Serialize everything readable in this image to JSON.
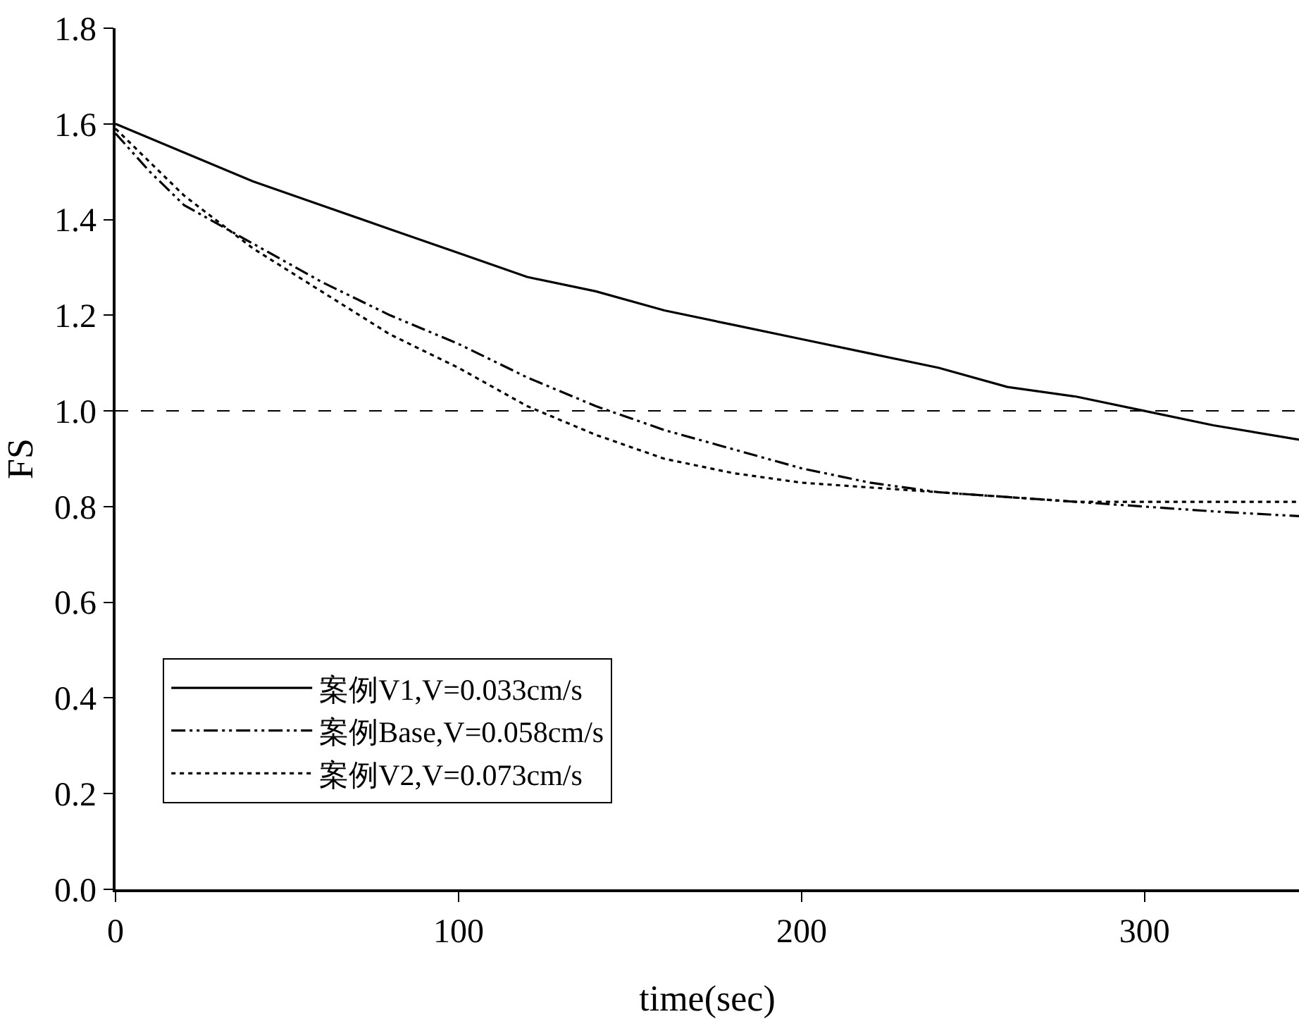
{
  "chart_data": {
    "type": "line",
    "xlabel": "time(sec)",
    "ylabel": "FS",
    "xlim": [
      0,
      345
    ],
    "xticks": [
      0,
      100,
      200,
      300
    ],
    "ylim": [
      0,
      1.8
    ],
    "yticks": [
      {
        "value": 0,
        "label": "0.0"
      },
      0.2,
      0.4,
      0.6,
      0.8,
      {
        "value": 1,
        "label": "1.0"
      },
      1.2,
      1.4,
      1.6,
      1.8
    ],
    "legend": "bottom left",
    "marker": "none",
    "ref_lines": [
      {
        "axis": "y",
        "value": 1.0,
        "color": "#000000",
        "line_style": "dashed"
      }
    ],
    "series": [
      {
        "name": "案例V1,V=0.033cm/s",
        "color": "#000000",
        "line_style": "solid",
        "x": [
          0,
          20,
          40,
          60,
          80,
          100,
          120,
          140,
          160,
          180,
          200,
          220,
          240,
          260,
          280,
          300,
          320,
          345
        ],
        "values": [
          1.6,
          1.54,
          1.48,
          1.43,
          1.38,
          1.33,
          1.28,
          1.25,
          1.21,
          1.18,
          1.15,
          1.12,
          1.09,
          1.05,
          1.03,
          1.0,
          0.97,
          0.94
        ]
      },
      {
        "name": "案例Base,V=0.058cm/s",
        "color": "#000000",
        "line_style": "dashdot",
        "x": [
          0,
          10,
          20,
          40,
          60,
          80,
          100,
          120,
          140,
          160,
          180,
          200,
          220,
          240,
          260,
          280,
          300,
          320,
          345
        ],
        "values": [
          1.58,
          1.5,
          1.43,
          1.35,
          1.27,
          1.2,
          1.14,
          1.07,
          1.01,
          0.96,
          0.92,
          0.88,
          0.85,
          0.83,
          0.82,
          0.81,
          0.8,
          0.79,
          0.78
        ]
      },
      {
        "name": "案例V2,V=0.073cm/s",
        "color": "#000000",
        "line_style": "dotted",
        "x": [
          0,
          20,
          40,
          60,
          80,
          100,
          120,
          140,
          160,
          180,
          200,
          220,
          240,
          260,
          280,
          300,
          345
        ],
        "values": [
          1.59,
          1.45,
          1.34,
          1.25,
          1.16,
          1.09,
          1.01,
          0.95,
          0.9,
          0.87,
          0.85,
          0.84,
          0.83,
          0.82,
          0.81,
          0.81,
          0.81
        ]
      }
    ]
  }
}
